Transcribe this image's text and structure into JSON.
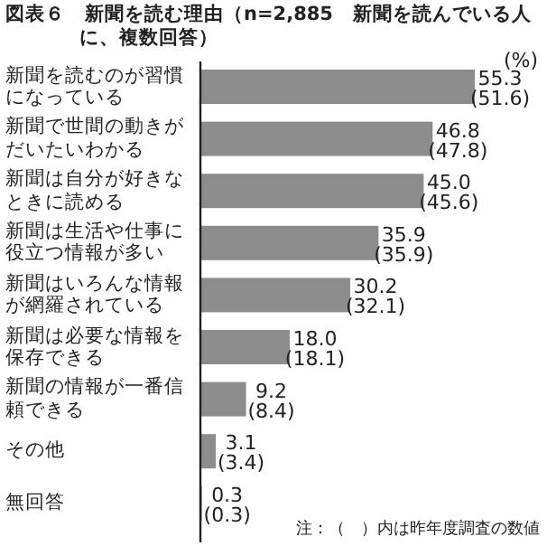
{
  "chart_data": {
    "type": "bar",
    "orientation": "horizontal",
    "title": "図表６　新聞を読む理由（n=2,885　新聞を読んでいる人に、複数回答）",
    "xlabel": "(%)",
    "categories": [
      "新聞を読むのが習慣になっている",
      "新聞で世間の動きがだいたいわかる",
      "新聞は自分が好きなときに読める",
      "新聞は生活や仕事に役立つ情報が多い",
      "新聞はいろんな情報が網羅されている",
      "新聞は必要な情報を保存できる",
      "新聞の情報が一番信頼できる",
      "その他",
      "無回答"
    ],
    "values": [
      55.3,
      46.8,
      45.0,
      35.9,
      30.2,
      18.0,
      9.2,
      3.1,
      0.3
    ],
    "value_labels": [
      "55.3\n(51.6)",
      "46.8\n(47.8)",
      "45.0\n(45.6)",
      "35.9\n(35.9)",
      "30.2\n(32.1)",
      "18.0\n(18.1)",
      "9.2\n(8.4)",
      "3.1\n(3.4)",
      "0.3\n(0.3)"
    ],
    "color": "#8c8c8c",
    "annotations": [
      "注：（　）内は昨年度調査の数値"
    ]
  }
}
